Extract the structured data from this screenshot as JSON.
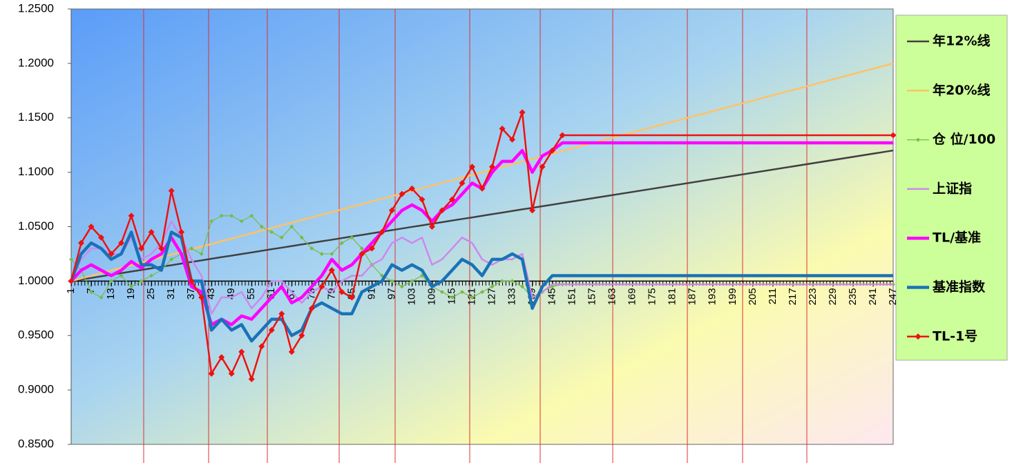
{
  "chart_data": {
    "type": "line",
    "x": [
      1,
      4,
      7,
      10,
      13,
      16,
      19,
      22,
      25,
      28,
      31,
      34,
      37,
      40,
      43,
      46,
      49,
      52,
      55,
      58,
      61,
      64,
      67,
      70,
      73,
      76,
      79,
      82,
      85,
      88,
      91,
      94,
      97,
      100,
      103,
      106,
      109,
      112,
      115,
      118,
      121,
      124,
      127,
      130,
      133,
      136,
      139,
      142,
      145,
      148,
      247
    ],
    "xlim": [
      1,
      247
    ],
    "xticks": [
      1,
      7,
      13,
      19,
      25,
      31,
      37,
      43,
      49,
      55,
      61,
      67,
      73,
      79,
      85,
      91,
      97,
      103,
      109,
      115,
      121,
      127,
      133,
      139,
      145,
      151,
      157,
      163,
      169,
      175,
      181,
      187,
      193,
      199,
      205,
      211,
      217,
      223,
      229,
      235,
      241,
      247
    ],
    "ylim": [
      0.85,
      1.25
    ],
    "yticks": [
      {
        "value": 0.85,
        "label": "0.8500"
      },
      {
        "value": 0.9,
        "label": "0.9000"
      },
      {
        "value": 0.95,
        "label": "0.9500"
      },
      {
        "value": 1.0,
        "label": "1.0000"
      },
      {
        "value": 1.05,
        "label": "1.0500"
      },
      {
        "value": 1.1,
        "label": "1.1000"
      },
      {
        "value": 1.15,
        "label": "1.1500"
      },
      {
        "value": 1.2,
        "label": "1.2000"
      },
      {
        "value": 1.25,
        "label": "1.2500"
      }
    ],
    "legend": "right",
    "series": [
      {
        "name": "年12%线",
        "color": "#404040",
        "width": 2.5,
        "marker": "none",
        "values": [
          1.0,
          1.0015,
          1.0029,
          1.0044,
          1.0059,
          1.0073,
          1.0088,
          1.0102,
          1.0117,
          1.0132,
          1.0146,
          1.0161,
          1.0176,
          1.019,
          1.0205,
          1.022,
          1.0234,
          1.0249,
          1.0263,
          1.0278,
          1.0293,
          1.0307,
          1.0322,
          1.0337,
          1.0351,
          1.0366,
          1.038,
          1.0395,
          1.041,
          1.0424,
          1.0439,
          1.0454,
          1.0468,
          1.0483,
          1.0498,
          1.0512,
          1.0527,
          1.0541,
          1.0556,
          1.0571,
          1.0585,
          1.06,
          1.0615,
          1.0629,
          1.0644,
          1.0659,
          1.0673,
          1.0688,
          1.0702,
          1.0717,
          1.12
        ]
      },
      {
        "name": "年20%线",
        "color": "#ffc266",
        "width": 2.5,
        "marker": "none",
        "values": [
          1.0,
          1.0024,
          1.0049,
          1.0073,
          1.0098,
          1.0122,
          1.0146,
          1.0171,
          1.0195,
          1.022,
          1.0244,
          1.0268,
          1.0293,
          1.0317,
          1.0341,
          1.0366,
          1.039,
          1.0415,
          1.0439,
          1.0463,
          1.0488,
          1.0512,
          1.0537,
          1.0561,
          1.0585,
          1.061,
          1.0634,
          1.0659,
          1.0683,
          1.0707,
          1.0732,
          1.0756,
          1.078,
          1.0805,
          1.0829,
          1.0854,
          1.0878,
          1.0902,
          1.0927,
          1.0951,
          1.0976,
          1.1,
          1.1024,
          1.1049,
          1.1073,
          1.1098,
          1.1122,
          1.1146,
          1.1171,
          1.1195,
          1.2
        ]
      },
      {
        "name": "仓 位/100",
        "color": "#77bb44",
        "width": 1.2,
        "marker": "diamond-small",
        "values": [
          1.02,
          1.01,
          0.99,
          0.985,
          1.0,
          1.005,
          0.995,
          1.0,
          1.005,
          1.01,
          1.02,
          1.025,
          1.03,
          1.025,
          1.055,
          1.06,
          1.06,
          1.055,
          1.06,
          1.05,
          1.045,
          1.04,
          1.05,
          1.04,
          1.03,
          1.025,
          1.025,
          1.035,
          1.04,
          1.03,
          1.015,
          1.005,
          1.0,
          0.995,
          1.0,
          1.005,
          0.995,
          0.99,
          0.985,
          0.99,
          0.985,
          0.99,
          0.995,
          1.0,
          1.0,
          0.995,
          0.985,
          0.99,
          0.995,
          0.997,
          0.997
        ]
      },
      {
        "name": "上证指",
        "color": "#cc88ee",
        "width": 2.5,
        "marker": "none",
        "values": [
          1.0,
          1.02,
          1.03,
          1.03,
          1.025,
          1.025,
          1.04,
          1.02,
          1.025,
          1.035,
          1.055,
          1.04,
          1.02,
          1.005,
          0.97,
          0.985,
          0.985,
          0.99,
          0.975,
          0.985,
          1.0,
          1.0,
          0.99,
          0.98,
          0.99,
          0.995,
          0.99,
          1.0,
          1.005,
          1.005,
          1.015,
          1.02,
          1.035,
          1.04,
          1.035,
          1.04,
          1.015,
          1.02,
          1.03,
          1.04,
          1.035,
          1.02,
          1.015,
          1.02,
          1.02,
          1.025,
          0.985,
          0.99,
          0.997,
          0.997,
          0.997
        ]
      },
      {
        "name": "TL/基准",
        "color": "#ff00ff",
        "width": 4.5,
        "marker": "none",
        "values": [
          1.0,
          1.01,
          1.015,
          1.01,
          1.005,
          1.01,
          1.018,
          1.012,
          1.02,
          1.025,
          1.04,
          1.025,
          0.995,
          0.99,
          0.96,
          0.965,
          0.96,
          0.968,
          0.965,
          0.975,
          0.985,
          0.995,
          0.98,
          0.985,
          0.995,
          1.005,
          1.02,
          1.01,
          1.015,
          1.025,
          1.035,
          1.045,
          1.055,
          1.065,
          1.07,
          1.065,
          1.055,
          1.065,
          1.07,
          1.08,
          1.09,
          1.085,
          1.1,
          1.11,
          1.11,
          1.12,
          1.1,
          1.115,
          1.12,
          1.127,
          1.127
        ]
      },
      {
        "name": "基准指数",
        "color": "#1a72b8",
        "width": 4.5,
        "marker": "none",
        "values": [
          1.0,
          1.025,
          1.035,
          1.03,
          1.02,
          1.025,
          1.045,
          1.015,
          1.015,
          1.01,
          1.045,
          1.04,
          1.0,
          1.0,
          0.955,
          0.965,
          0.955,
          0.96,
          0.945,
          0.955,
          0.965,
          0.965,
          0.95,
          0.955,
          0.975,
          0.98,
          0.975,
          0.97,
          0.97,
          0.99,
          0.995,
          1.0,
          1.015,
          1.01,
          1.015,
          1.01,
          0.995,
          1.0,
          1.01,
          1.02,
          1.015,
          1.005,
          1.02,
          1.02,
          1.025,
          1.02,
          0.975,
          0.995,
          1.005,
          1.005,
          1.005
        ]
      },
      {
        "name": "TL-1号",
        "color": "#ee1111",
        "width": 2.5,
        "marker": "diamond",
        "values": [
          1.0,
          1.035,
          1.05,
          1.04,
          1.025,
          1.035,
          1.06,
          1.03,
          1.045,
          1.03,
          1.083,
          1.045,
          1.0,
          0.985,
          0.915,
          0.93,
          0.915,
          0.935,
          0.91,
          0.94,
          0.955,
          0.97,
          0.935,
          0.95,
          0.975,
          0.995,
          1.01,
          0.99,
          0.985,
          1.025,
          1.03,
          1.045,
          1.065,
          1.08,
          1.085,
          1.075,
          1.05,
          1.065,
          1.075,
          1.09,
          1.105,
          1.085,
          1.105,
          1.14,
          1.13,
          1.155,
          1.065,
          1.105,
          1.12,
          1.134,
          1.134
        ]
      }
    ]
  }
}
